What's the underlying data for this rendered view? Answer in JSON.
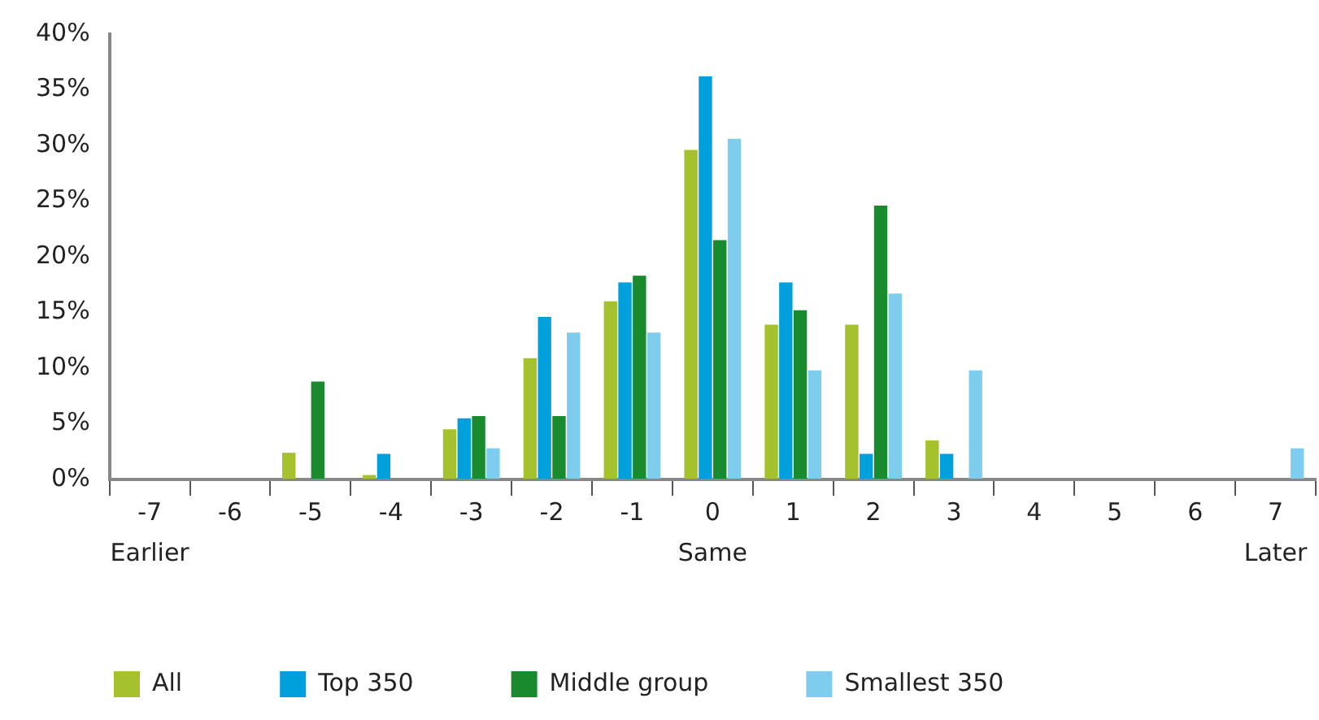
{
  "chart_data": {
    "type": "bar",
    "categories": [
      "-7",
      "-6",
      "-5",
      "-4",
      "-3",
      "-2",
      "-1",
      "0",
      "1",
      "2",
      "3",
      "4",
      "5",
      "6",
      "7"
    ],
    "series": [
      {
        "name": "All",
        "color": "#a5c22e",
        "values": [
          0,
          0,
          2.4,
          0.4,
          4.5,
          10.9,
          16.0,
          29.6,
          13.9,
          13.9,
          3.5,
          0,
          0,
          0,
          0
        ]
      },
      {
        "name": "Top 350",
        "color": "#00a0dc",
        "values": [
          0,
          0,
          0,
          2.3,
          5.5,
          14.6,
          17.7,
          36.2,
          17.7,
          2.3,
          2.3,
          0,
          0,
          0,
          0
        ]
      },
      {
        "name": "Middle group",
        "color": "#1a8a2e",
        "values": [
          0,
          0,
          8.8,
          0,
          5.7,
          5.7,
          18.3,
          21.5,
          15.2,
          24.6,
          0,
          0,
          0,
          0,
          0
        ]
      },
      {
        "name": "Smallest 350",
        "color": "#7fcdee",
        "values": [
          0,
          0,
          0,
          0,
          2.8,
          13.2,
          13.2,
          30.6,
          9.8,
          16.7,
          9.8,
          0,
          0,
          0,
          2.8
        ]
      }
    ],
    "ylim": [
      0,
      40
    ],
    "yticks": [
      {
        "value": 0,
        "label": "0%"
      },
      {
        "value": 5,
        "label": "5%"
      },
      {
        "value": 10,
        "label": "10%"
      },
      {
        "value": 15,
        "label": "15%"
      },
      {
        "value": 20,
        "label": "20%"
      },
      {
        "value": 25,
        "label": "25%"
      },
      {
        "value": 30,
        "label": "30%"
      },
      {
        "value": 35,
        "label": "35%"
      },
      {
        "value": 40,
        "label": "40%"
      }
    ],
    "annotations": [
      "Earlier",
      "Same",
      "Later"
    ],
    "grid": false,
    "legend": "bottom"
  }
}
